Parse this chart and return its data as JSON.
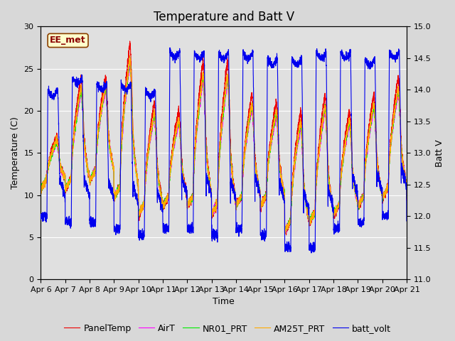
{
  "title": "Temperature and Batt V",
  "xlabel": "Time",
  "ylabel_left": "Temperature (C)",
  "ylabel_right": "Batt V",
  "annotation": "EE_met",
  "ylim_left": [
    0,
    30
  ],
  "ylim_right": [
    11.0,
    15.0
  ],
  "x_tick_labels": [
    "Apr 6",
    "Apr 7",
    "Apr 8",
    "Apr 9",
    "Apr 10",
    "Apr 11",
    "Apr 12",
    "Apr 13",
    "Apr 14",
    "Apr 15",
    "Apr 16",
    "Apr 17",
    "Apr 18",
    "Apr 19",
    "Apr 20",
    "Apr 21"
  ],
  "legend_entries": [
    "PanelTemp",
    "AirT",
    "NR01_PRT",
    "AM25T_PRT",
    "batt_volt"
  ],
  "colors": {
    "PanelTemp": "#ee0000",
    "AirT": "#ff00ff",
    "NR01_PRT": "#00ee00",
    "AM25T_PRT": "#ffaa00",
    "batt_volt": "#0000ee"
  },
  "background_color": "#d8d8d8",
  "plot_bg_color": "#e0e0e0",
  "grid_color": "#ffffff",
  "title_fontsize": 12,
  "axis_fontsize": 9,
  "tick_fontsize": 8,
  "legend_fontsize": 9,
  "linewidth": 0.8
}
